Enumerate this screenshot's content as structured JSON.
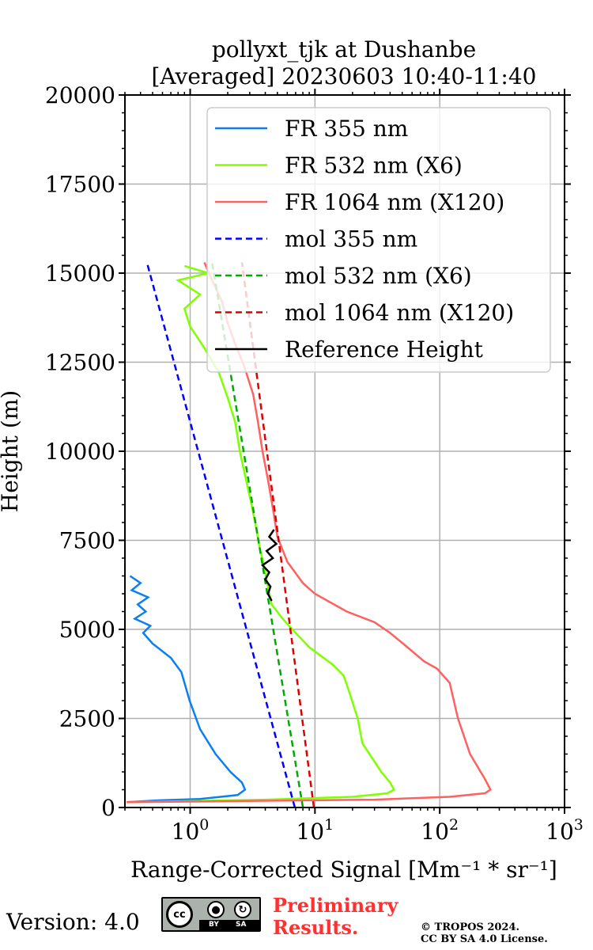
{
  "chart_data": {
    "type": "line",
    "title": [
      "pollyxt_tjk at Dushanbe",
      "[Averaged] 20230603 10:40-11:40"
    ],
    "xlabel": "Range-Corrected Signal [Mm⁻¹ * sr⁻¹]",
    "ylabel": "Height (m)",
    "xscale": "log",
    "xlim": [
      0.3,
      1000
    ],
    "ylim": [
      0,
      20000
    ],
    "grid": true,
    "legend_position": "top-right",
    "x_ticks": [
      {
        "value": 1,
        "base": "10",
        "exp": "0"
      },
      {
        "value": 10,
        "base": "10",
        "exp": "1"
      },
      {
        "value": 100,
        "base": "10",
        "exp": "2"
      },
      {
        "value": 1000,
        "base": "10",
        "exp": "3"
      }
    ],
    "y_ticks": [
      "0",
      "2500",
      "5000",
      "7500",
      "10000",
      "12500",
      "15000",
      "17500",
      "20000"
    ],
    "series": [
      {
        "name": "FR 355 nm",
        "color": "#0a7ff2",
        "dash": "solid",
        "points": [
          [
            0.31,
            150
          ],
          [
            0.55,
            200
          ],
          [
            1.2,
            240
          ],
          [
            2.4,
            350
          ],
          [
            2.75,
            500
          ],
          [
            2.6,
            700
          ],
          [
            2.1,
            1000
          ],
          [
            1.6,
            1500
          ],
          [
            1.2,
            2200
          ],
          [
            0.99,
            3000
          ],
          [
            0.85,
            3800
          ],
          [
            0.7,
            4200
          ],
          [
            0.5,
            4600
          ],
          [
            0.42,
            4900
          ],
          [
            0.48,
            5100
          ],
          [
            0.36,
            5300
          ],
          [
            0.44,
            5500
          ],
          [
            0.38,
            5700
          ],
          [
            0.46,
            5900
          ],
          [
            0.34,
            6100
          ],
          [
            0.4,
            6300
          ],
          [
            0.33,
            6500
          ]
        ]
      },
      {
        "name": "FR 532 nm (X6)",
        "color": "#7fff00",
        "dash": "solid",
        "points": [
          [
            0.31,
            150
          ],
          [
            4,
            220
          ],
          [
            20,
            300
          ],
          [
            38,
            400
          ],
          [
            43,
            500
          ],
          [
            40,
            700
          ],
          [
            34,
            1000
          ],
          [
            24,
            1800
          ],
          [
            22,
            2500
          ],
          [
            19,
            3200
          ],
          [
            17,
            3700
          ],
          [
            14,
            4000
          ],
          [
            9,
            4500
          ],
          [
            7,
            4900
          ],
          [
            5.5,
            5300
          ],
          [
            4.5,
            5700
          ],
          [
            4.2,
            6200
          ],
          [
            3.9,
            6800
          ],
          [
            3.6,
            7300
          ],
          [
            3.4,
            7800
          ],
          [
            3.1,
            8500
          ],
          [
            2.8,
            9200
          ],
          [
            2.5,
            10000
          ],
          [
            2.3,
            10800
          ],
          [
            2,
            11500
          ],
          [
            1.7,
            12200
          ],
          [
            1.3,
            12900
          ],
          [
            1.0,
            13500
          ],
          [
            0.9,
            14000
          ],
          [
            1.2,
            14400
          ],
          [
            0.8,
            14800
          ],
          [
            1.4,
            15000
          ],
          [
            0.9,
            15200
          ]
        ]
      },
      {
        "name": "FR 1064 nm (X120)",
        "color": "#ff6060",
        "dash": "solid",
        "points": [
          [
            0.31,
            150
          ],
          [
            30,
            220
          ],
          [
            120,
            300
          ],
          [
            230,
            400
          ],
          [
            255,
            500
          ],
          [
            230,
            800
          ],
          [
            175,
            1500
          ],
          [
            140,
            2500
          ],
          [
            120,
            3500
          ],
          [
            95,
            3900
          ],
          [
            75,
            4100
          ],
          [
            55,
            4500
          ],
          [
            40,
            4900
          ],
          [
            30,
            5200
          ],
          [
            18,
            5500
          ],
          [
            10,
            6000
          ],
          [
            8,
            6300
          ],
          [
            6,
            6900
          ],
          [
            5,
            7600
          ],
          [
            4.6,
            8400
          ],
          [
            4.2,
            9200
          ],
          [
            3.8,
            10000
          ],
          [
            3.5,
            10800
          ],
          [
            3.2,
            11600
          ],
          [
            2.7,
            12400
          ],
          [
            2.3,
            13000
          ],
          [
            2.0,
            13600
          ],
          [
            1.8,
            14200
          ],
          [
            1.5,
            14800
          ],
          [
            1.3,
            15300
          ]
        ]
      },
      {
        "name": "mol 355 nm",
        "color": "#0000ff",
        "dash": "dashed",
        "points": [
          [
            6.9,
            0
          ],
          [
            0.45,
            15300
          ]
        ]
      },
      {
        "name": "mol 532 nm (X6)",
        "color": "#00aa00",
        "dash": "dashed",
        "points": [
          [
            8,
            0
          ],
          [
            1.5,
            15300
          ]
        ]
      },
      {
        "name": "mol 1064 nm (X120)",
        "color": "#dd0000",
        "dash": "dashed",
        "points": [
          [
            9.8,
            0
          ],
          [
            2.6,
            15300
          ]
        ]
      },
      {
        "name": "Reference Height",
        "color": "#000000",
        "dash": "solid",
        "points": [
          [
            4.5,
            5800
          ],
          [
            4.2,
            6000
          ],
          [
            4.4,
            6200
          ],
          [
            4.0,
            6400
          ],
          [
            4.3,
            6600
          ],
          [
            3.8,
            6800
          ],
          [
            4.6,
            7000
          ],
          [
            4.1,
            7200
          ],
          [
            4.9,
            7400
          ],
          [
            4.3,
            7600
          ],
          [
            4.7,
            7800
          ]
        ]
      }
    ]
  },
  "footer": {
    "version": "Version: 4.0",
    "preliminary": [
      "Preliminary",
      "Results."
    ],
    "copyright": [
      "© TROPOS 2024.",
      "CC BY SA 4.0 License."
    ],
    "license_badge": {
      "cc": "cc",
      "by": "BY",
      "sa": "SA"
    }
  }
}
